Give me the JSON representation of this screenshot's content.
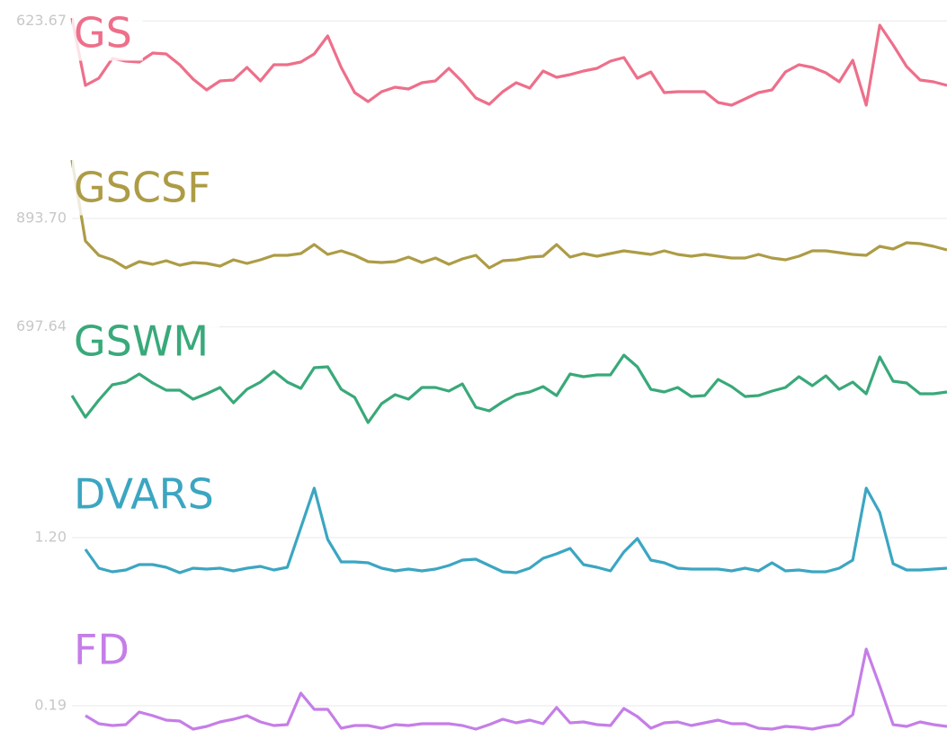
{
  "chart_data": [
    {
      "type": "line",
      "title": "GS",
      "color": "#ee6f8a",
      "ylim": [
        613,
        626
      ],
      "yticks": [
        623.67
      ],
      "values": [
        624.0,
        616.5,
        617.3,
        619.5,
        619.2,
        619.1,
        620.1,
        620.0,
        618.8,
        617.2,
        616.0,
        617.0,
        617.1,
        618.5,
        617.0,
        618.8,
        618.8,
        619.1,
        620.0,
        622.0,
        618.5,
        615.7,
        614.7,
        615.8,
        616.3,
        616.1,
        616.8,
        617.0,
        618.4,
        616.9,
        615.1,
        614.4,
        615.8,
        616.8,
        616.2,
        618.1,
        617.4,
        617.7,
        618.1,
        618.4,
        619.2,
        619.6,
        617.3,
        618.0,
        615.7,
        615.8,
        615.8,
        615.8,
        614.6,
        614.3,
        615.0,
        615.7,
        616.0,
        618.0,
        618.8,
        618.5,
        617.9,
        616.9,
        619.3,
        614.3,
        623.2,
        621.0,
        618.6,
        617.1,
        616.9,
        616.5
      ]
    },
    {
      "type": "line",
      "title": "GSCSF",
      "color": "#ad9c46",
      "ylim": [
        886,
        904
      ],
      "yticks": [
        {
          "value": 893.7,
          "label": "893.70"
        }
      ],
      "values": [
        900.2,
        891.2,
        889.6,
        889.1,
        888.2,
        888.9,
        888.6,
        889.0,
        888.5,
        888.8,
        888.7,
        888.4,
        889.1,
        888.7,
        889.1,
        889.6,
        889.6,
        889.8,
        890.8,
        889.7,
        890.1,
        889.6,
        888.9,
        888.8,
        888.9,
        889.4,
        888.8,
        889.3,
        888.6,
        889.2,
        889.6,
        888.2,
        889.0,
        889.1,
        889.4,
        889.5,
        890.8,
        889.4,
        889.8,
        889.5,
        889.8,
        890.1,
        889.9,
        889.7,
        890.1,
        889.7,
        889.5,
        889.7,
        889.5,
        889.3,
        889.3,
        889.7,
        889.3,
        889.1,
        889.5,
        890.1,
        890.1,
        889.9,
        889.7,
        889.6,
        890.6,
        890.3,
        891.0,
        890.9,
        890.6,
        890.2
      ]
    },
    {
      "type": "line",
      "title": "GSWM",
      "color": "#39a97a",
      "ylim": [
        685,
        700
      ],
      "yticks": [
        697.64
      ],
      "values": [
        690.0,
        687.6,
        689.5,
        691.2,
        691.5,
        692.4,
        691.4,
        690.6,
        690.6,
        689.6,
        690.2,
        690.9,
        689.2,
        690.7,
        691.5,
        692.7,
        691.5,
        690.8,
        693.1,
        693.2,
        690.7,
        689.8,
        687.0,
        689.1,
        690.1,
        689.6,
        690.9,
        690.9,
        690.5,
        691.3,
        688.7,
        688.3,
        689.3,
        690.1,
        690.4,
        691.0,
        690.0,
        692.4,
        692.1,
        692.3,
        692.3,
        694.5,
        693.2,
        690.7,
        690.4,
        690.9,
        689.9,
        690.0,
        691.8,
        691.0,
        689.9,
        690.0,
        690.5,
        690.9,
        692.1,
        691.1,
        692.2,
        690.7,
        691.5,
        690.2,
        694.3,
        691.6,
        691.4,
        690.2,
        690.2,
        690.4
      ]
    },
    {
      "type": "line",
      "title": "DVARS",
      "color": "#3ba6c2",
      "ylim": [
        0.94,
        1.59
      ],
      "yticks": [
        {
          "value": 1.2,
          "label": "1.20"
        }
      ],
      "values": [
        null,
        1.135,
        1.03,
        1.01,
        1.02,
        1.05,
        1.05,
        1.035,
        1.005,
        1.03,
        1.025,
        1.03,
        1.015,
        1.03,
        1.04,
        1.02,
        1.035,
        1.255,
        1.475,
        1.19,
        1.065,
        1.065,
        1.06,
        1.03,
        1.015,
        1.025,
        1.015,
        1.025,
        1.045,
        1.075,
        1.08,
        1.045,
        1.01,
        1.005,
        1.03,
        1.085,
        1.11,
        1.14,
        1.05,
        1.035,
        1.015,
        1.12,
        1.195,
        1.075,
        1.06,
        1.03,
        1.025,
        1.025,
        1.025,
        1.015,
        1.03,
        1.015,
        1.06,
        1.015,
        1.02,
        1.01,
        1.01,
        1.03,
        1.075,
        1.475,
        1.34,
        1.055,
        1.02,
        1.02,
        1.025,
        1.03
      ]
    },
    {
      "type": "line",
      "title": "FD",
      "color": "#c57ee8",
      "ylim": [
        0.12,
        0.36
      ],
      "yticks": [
        0.19
      ],
      "values": [
        null,
        0.168,
        0.15,
        0.146,
        0.148,
        0.176,
        0.168,
        0.158,
        0.156,
        0.138,
        0.144,
        0.154,
        0.16,
        0.168,
        0.154,
        0.146,
        0.148,
        0.218,
        0.182,
        0.182,
        0.14,
        0.146,
        0.146,
        0.14,
        0.148,
        0.146,
        0.15,
        0.15,
        0.15,
        0.146,
        0.138,
        0.148,
        0.16,
        0.152,
        0.158,
        0.15,
        0.186,
        0.152,
        0.154,
        0.148,
        0.146,
        0.184,
        0.166,
        0.14,
        0.152,
        0.154,
        0.146,
        0.152,
        0.158,
        0.15,
        0.15,
        0.14,
        0.138,
        0.144,
        0.142,
        0.138,
        0.144,
        0.148,
        0.17,
        0.316,
        0.234,
        0.148,
        0.144,
        0.154,
        0.148,
        0.144
      ]
    }
  ]
}
